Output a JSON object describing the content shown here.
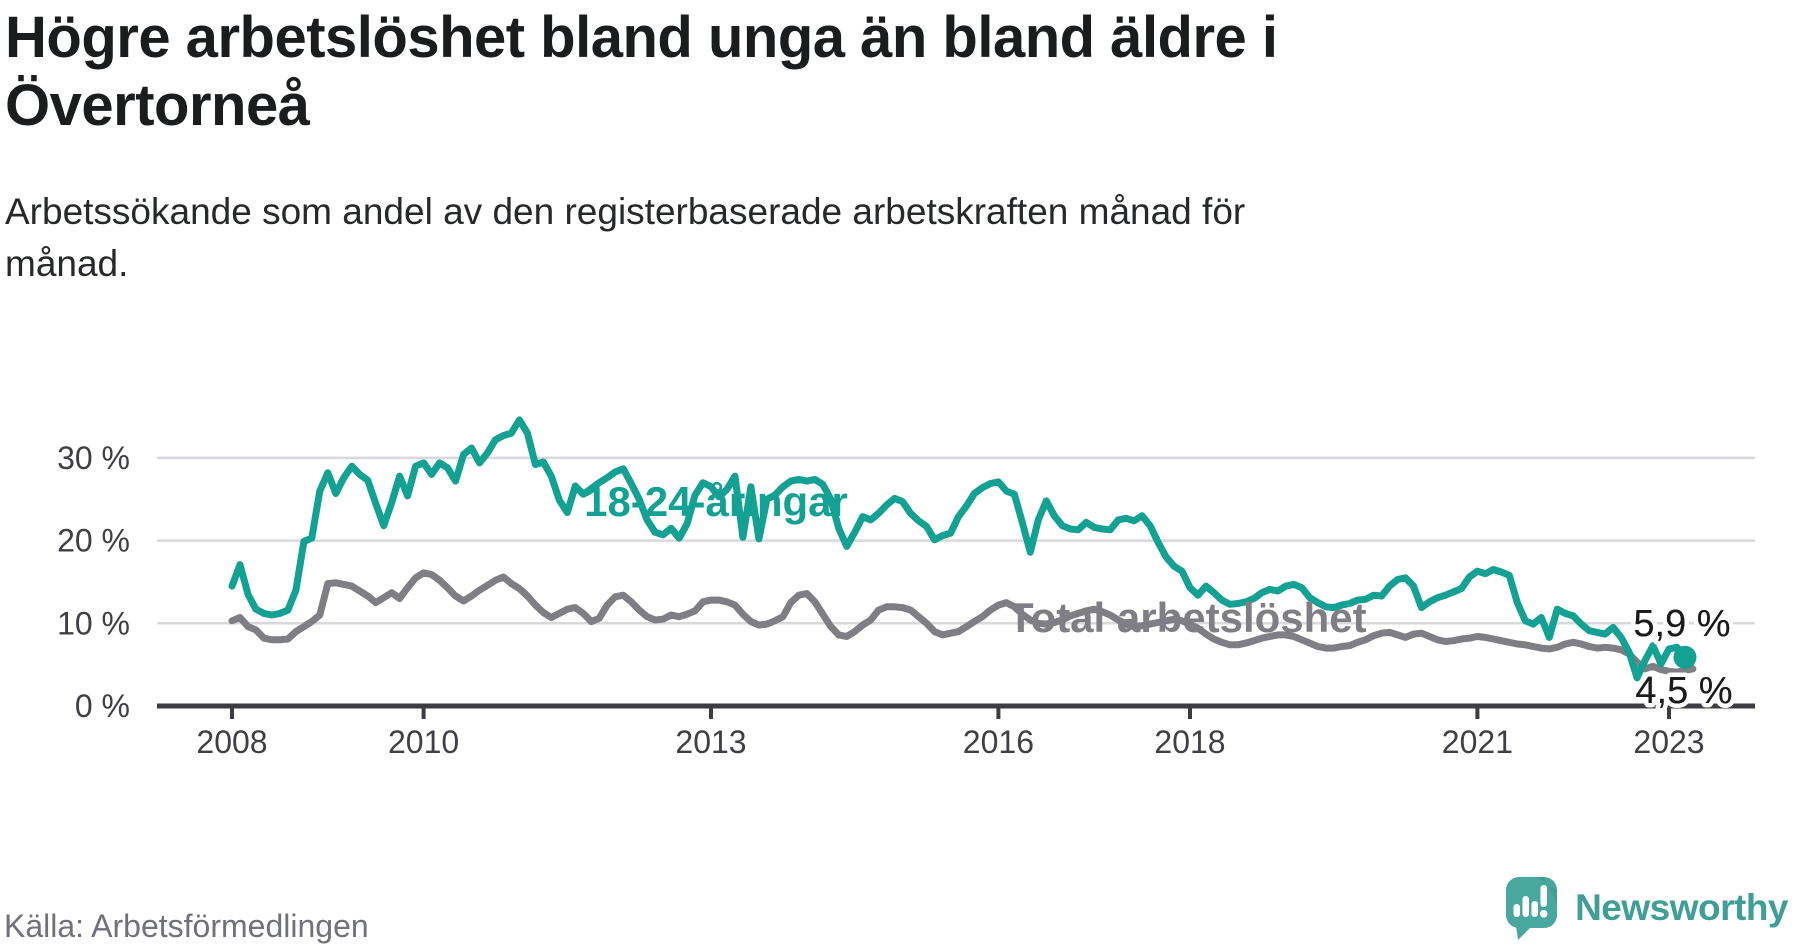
{
  "header": {
    "title_lines": [
      "Högre arbetslöshet bland unga än bland äldre i",
      "Övertorneå"
    ],
    "subtitle_lines": [
      "Arbetssökande som andel av den registerbaserade arbetskraften månad för",
      "månad."
    ]
  },
  "footer": {
    "source": "Källa: Arbetsförmedlingen",
    "brand": "Newsworthy"
  },
  "colors": {
    "accent_teal": "#12a192",
    "line_gray": "#7e7e84",
    "gridline": "#d9d9dd",
    "axis": "#3c3c42",
    "axis_label": "#3f3f46",
    "end_label": "#1b1b1b",
    "logo_teal": "#48a79e",
    "logo_teal_dark": "#3a958d",
    "logo_text": "#3f9e96"
  },
  "chart_data": {
    "type": "line",
    "title": "Högre arbetslöshet bland unga än bland äldre i Övertorneå",
    "subtitle": "Arbetssökande som andel av den registerbaserade arbetskraften månad för månad.",
    "x_start_year": 2008,
    "x_step_months": 1,
    "ylim": [
      0,
      36
    ],
    "grid": true,
    "legend_position": "inline-labels",
    "y_ticks": [
      {
        "v": 0,
        "label": "0 %"
      },
      {
        "v": 10,
        "label": "10 %"
      },
      {
        "v": 20,
        "label": "20 %"
      },
      {
        "v": 30,
        "label": "30 %"
      }
    ],
    "x_ticks": [
      {
        "v": 2008,
        "label": "2008"
      },
      {
        "v": 2010,
        "label": "2010"
      },
      {
        "v": 2013,
        "label": "2013"
      },
      {
        "v": 2016,
        "label": "2016"
      },
      {
        "v": 2018,
        "label": "2018"
      },
      {
        "v": 2021,
        "label": "2021"
      },
      {
        "v": 2023,
        "label": "2023"
      }
    ],
    "series": [
      {
        "name": "18-24-åringar",
        "color": "#12a192",
        "end_label": "5,9 %",
        "end_value": 5.9,
        "end_dot": true,
        "values": [
          14.5,
          17.1,
          13.5,
          11.7,
          11.2,
          11.0,
          11.2,
          11.6,
          14.0,
          19.9,
          20.3,
          26.0,
          28.2,
          25.7,
          27.6,
          29.0,
          28.0,
          27.3,
          24.5,
          21.8,
          24.6,
          27.8,
          25.4,
          29.0,
          29.4,
          28.0,
          29.4,
          28.8,
          27.2,
          30.4,
          31.2,
          29.4,
          30.6,
          32.2,
          32.7,
          33.0,
          34.6,
          33.0,
          29.2,
          29.5,
          27.8,
          24.9,
          23.4,
          26.6,
          25.6,
          26.3,
          27.0,
          27.6,
          28.3,
          28.7,
          26.9,
          25.0,
          22.5,
          21.0,
          20.7,
          21.5,
          20.3,
          22.0,
          25.5,
          27.0,
          26.5,
          25.3,
          26.2,
          27.8,
          20.4,
          26.5,
          20.2,
          25.0,
          25.5,
          26.5,
          27.2,
          27.4,
          27.2,
          27.4,
          26.8,
          25.0,
          21.5,
          19.3,
          21.0,
          22.9,
          22.5,
          23.3,
          24.3,
          25.1,
          24.7,
          23.3,
          22.4,
          21.7,
          20.1,
          20.6,
          20.9,
          22.9,
          24.2,
          25.7,
          26.4,
          26.9,
          27.1,
          26.0,
          25.6,
          22.2,
          18.6,
          22.5,
          24.8,
          23.0,
          21.8,
          21.4,
          21.3,
          22.2,
          21.6,
          21.4,
          21.3,
          22.5,
          22.7,
          22.4,
          23.0,
          21.8,
          19.8,
          18.0,
          16.9,
          16.3,
          14.3,
          13.4,
          14.5,
          13.7,
          12.8,
          12.3,
          12.4,
          12.6,
          13.0,
          13.7,
          14.1,
          13.9,
          14.5,
          14.7,
          14.3,
          13.1,
          12.5,
          12.0,
          11.9,
          12.2,
          12.4,
          12.8,
          12.9,
          13.4,
          13.3,
          14.5,
          15.3,
          15.5,
          14.5,
          11.9,
          12.6,
          13.1,
          13.4,
          13.8,
          14.2,
          15.6,
          16.3,
          16.0,
          16.5,
          16.2,
          15.8,
          12.5,
          10.3,
          9.9,
          10.7,
          8.3,
          11.7,
          11.2,
          10.9,
          9.9,
          9.1,
          8.9,
          8.7,
          9.5,
          8.3,
          6.5,
          3.4,
          5.5,
          7.3,
          5.1,
          6.9,
          7.1,
          5.9
        ]
      },
      {
        "name": "Total arbetslöshet",
        "color": "#7e7e84",
        "end_label": "4,5 %",
        "end_value": 4.5,
        "end_dot": false,
        "values": [
          10.3,
          10.7,
          9.6,
          9.2,
          8.2,
          8.0,
          8.0,
          8.1,
          9.0,
          9.6,
          10.2,
          11.0,
          14.8,
          14.9,
          14.7,
          14.5,
          13.9,
          13.3,
          12.5,
          13.1,
          13.7,
          13.0,
          14.3,
          15.5,
          16.1,
          15.9,
          15.2,
          14.3,
          13.3,
          12.7,
          13.3,
          14.0,
          14.6,
          15.2,
          15.6,
          14.8,
          14.2,
          13.3,
          12.2,
          11.3,
          10.7,
          11.2,
          11.7,
          11.9,
          11.2,
          10.2,
          10.6,
          12.2,
          13.2,
          13.4,
          12.6,
          11.6,
          10.8,
          10.4,
          10.5,
          11.0,
          10.8,
          11.1,
          11.5,
          12.6,
          12.8,
          12.8,
          12.6,
          12.2,
          11.1,
          10.2,
          9.8,
          9.9,
          10.3,
          10.8,
          12.5,
          13.4,
          13.6,
          12.6,
          11.1,
          9.6,
          8.6,
          8.4,
          9.0,
          9.8,
          10.4,
          11.6,
          12.0,
          12.0,
          11.9,
          11.6,
          10.8,
          10.0,
          9.0,
          8.6,
          8.8,
          9.0,
          9.6,
          10.2,
          10.8,
          11.6,
          12.2,
          12.5,
          12.0,
          11.1,
          10.4,
          10.0,
          9.9,
          10.1,
          10.4,
          10.9,
          11.2,
          11.5,
          11.7,
          11.4,
          11.0,
          10.4,
          9.9,
          9.6,
          9.7,
          9.9,
          10.1,
          10.3,
          10.5,
          10.3,
          9.9,
          9.4,
          8.7,
          8.1,
          7.7,
          7.4,
          7.4,
          7.6,
          7.9,
          8.2,
          8.4,
          8.6,
          8.6,
          8.4,
          8.0,
          7.6,
          7.2,
          7.0,
          7.0,
          7.2,
          7.3,
          7.7,
          8.0,
          8.5,
          8.8,
          8.9,
          8.6,
          8.3,
          8.7,
          8.8,
          8.4,
          8.0,
          7.8,
          7.9,
          8.1,
          8.2,
          8.4,
          8.3,
          8.1,
          7.9,
          7.7,
          7.5,
          7.4,
          7.2,
          7.0,
          6.9,
          7.1,
          7.5,
          7.7,
          7.5,
          7.2,
          7.0,
          7.1,
          7.0,
          6.8,
          6.3,
          5.3,
          4.5,
          4.8,
          4.4,
          4.2,
          4.1,
          4.3,
          4.5
        ]
      }
    ]
  }
}
